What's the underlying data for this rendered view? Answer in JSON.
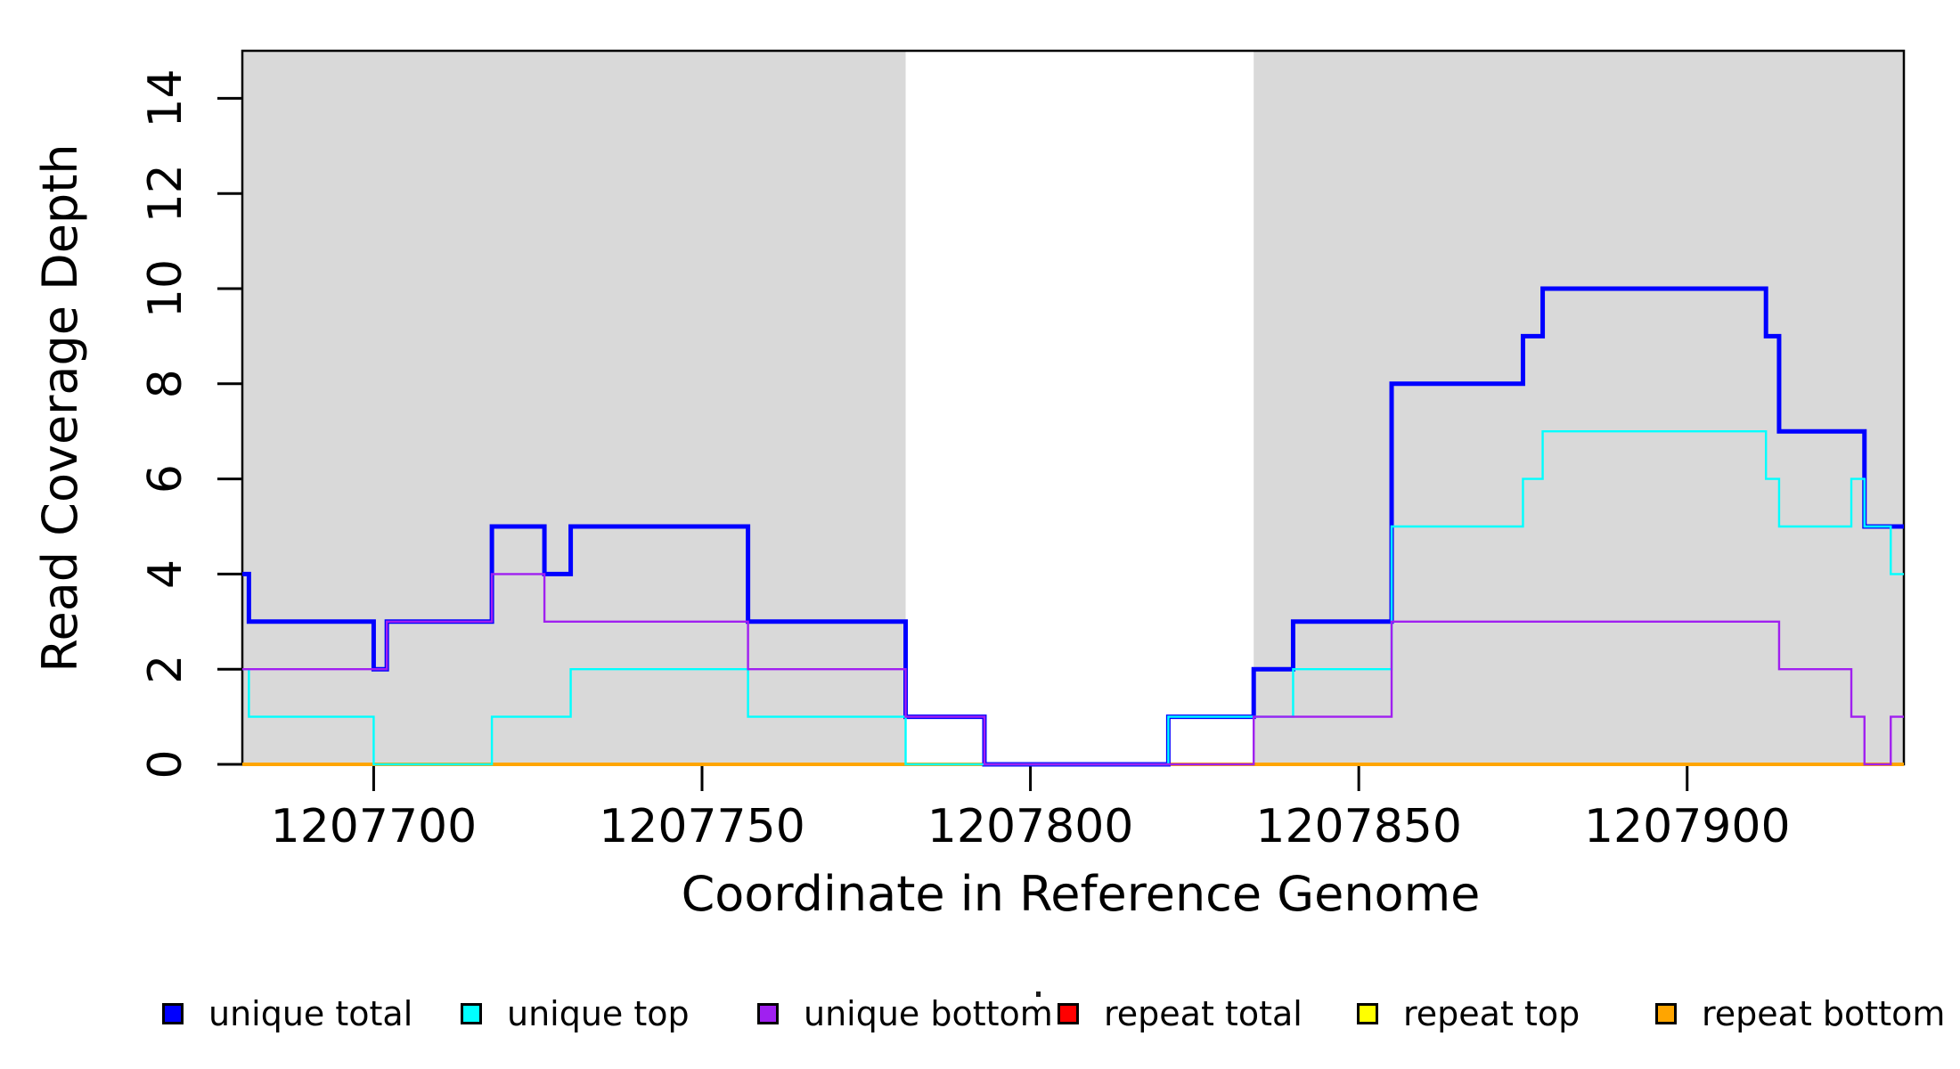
{
  "chart_data": {
    "type": "line",
    "subtype": "step-coverage",
    "title": "",
    "xlabel": "Coordinate in Reference Genome",
    "ylabel": "Read Coverage Depth",
    "xlim": [
      1207680,
      1207933
    ],
    "ylim": [
      0,
      15
    ],
    "grid": "off",
    "x_ticks": [
      1207700,
      1207750,
      1207800,
      1207850,
      1207900
    ],
    "y_ticks": [
      0,
      2,
      4,
      6,
      8,
      10,
      12,
      14
    ],
    "shade_color": "#d9d9d9",
    "shaded_regions": [
      {
        "x0": 1207680,
        "x1": 1207781
      },
      {
        "x0": 1207834,
        "x1": 1207933
      }
    ],
    "series": [
      {
        "name": "repeat total",
        "color": "#ff0000",
        "width": 2,
        "steps": [
          [
            1207680,
            0
          ]
        ]
      },
      {
        "name": "repeat top",
        "color": "#ffff00",
        "width": 2,
        "steps": [
          [
            1207680,
            0
          ]
        ]
      },
      {
        "name": "repeat bottom",
        "color": "#ffa500",
        "width": 4,
        "steps": [
          [
            1207680,
            0
          ]
        ]
      },
      {
        "name": "unique total",
        "color": "#0000ff",
        "width": 5,
        "steps": [
          [
            1207680,
            4
          ],
          [
            1207681,
            3
          ],
          [
            1207700,
            2
          ],
          [
            1207702,
            3
          ],
          [
            1207718,
            5
          ],
          [
            1207726,
            4
          ],
          [
            1207730,
            5
          ],
          [
            1207757,
            3
          ],
          [
            1207781,
            1
          ],
          [
            1207793,
            0
          ],
          [
            1207821,
            1
          ],
          [
            1207834,
            2
          ],
          [
            1207840,
            3
          ],
          [
            1207855,
            8
          ],
          [
            1207875,
            9
          ],
          [
            1207878,
            10
          ],
          [
            1207912,
            9
          ],
          [
            1207914,
            7
          ],
          [
            1207927,
            5
          ]
        ]
      },
      {
        "name": "unique top",
        "color": "#00ffff",
        "width": 2.4,
        "steps": [
          [
            1207680,
            2
          ],
          [
            1207681,
            1
          ],
          [
            1207700,
            0
          ],
          [
            1207718,
            1
          ],
          [
            1207730,
            2
          ],
          [
            1207757,
            1
          ],
          [
            1207781,
            0
          ],
          [
            1207821,
            1
          ],
          [
            1207840,
            2
          ],
          [
            1207855,
            5
          ],
          [
            1207875,
            6
          ],
          [
            1207878,
            7
          ],
          [
            1207912,
            6
          ],
          [
            1207914,
            5
          ],
          [
            1207925,
            6
          ],
          [
            1207927,
            5
          ],
          [
            1207931,
            4
          ]
        ]
      },
      {
        "name": "unique bottom",
        "color": "#a020f0",
        "width": 2.4,
        "steps": [
          [
            1207680,
            2
          ],
          [
            1207702,
            3
          ],
          [
            1207718,
            4
          ],
          [
            1207726,
            3
          ],
          [
            1207757,
            2
          ],
          [
            1207781,
            1
          ],
          [
            1207793,
            0
          ],
          [
            1207834,
            1
          ],
          [
            1207855,
            3
          ],
          [
            1207914,
            2
          ],
          [
            1207925,
            1
          ],
          [
            1207927,
            0
          ],
          [
            1207931,
            1
          ]
        ]
      }
    ],
    "legend": {
      "position": "bottom",
      "items": [
        {
          "label": "unique total",
          "color": "#0000ff"
        },
        {
          "label": "unique top",
          "color": "#00ffff"
        },
        {
          "label": "unique bottom",
          "color": "#a020f0"
        },
        {
          "label": "repeat total",
          "color": "#ff0000"
        },
        {
          "label": "repeat top",
          "color": "#ffff00"
        },
        {
          "label": "repeat bottom",
          "color": "#ffa500"
        }
      ]
    }
  }
}
